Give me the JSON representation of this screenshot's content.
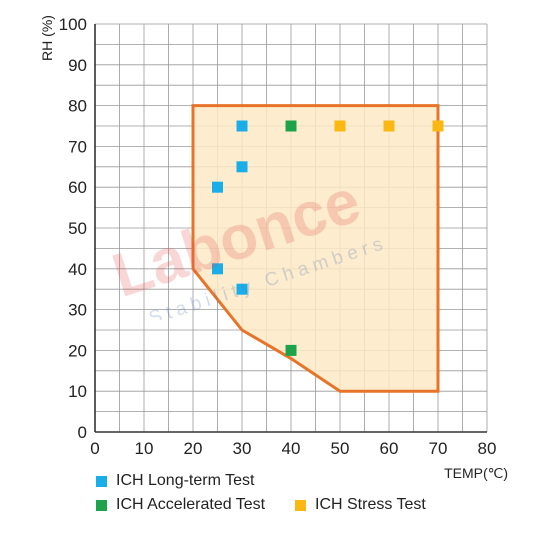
{
  "chart_data": {
    "type": "scatter",
    "xlabel": "TEMP(℃)",
    "ylabel": "RH (%)",
    "xlim": [
      0,
      80
    ],
    "ylim": [
      0,
      100
    ],
    "x_ticks": [
      0,
      10,
      20,
      30,
      40,
      50,
      60,
      70,
      80
    ],
    "y_ticks": [
      0,
      10,
      20,
      30,
      40,
      50,
      60,
      70,
      80,
      90,
      100
    ],
    "grid": true,
    "region": {
      "points": [
        [
          20,
          80
        ],
        [
          70,
          80
        ],
        [
          70,
          10
        ],
        [
          50,
          10
        ],
        [
          40,
          18
        ],
        [
          30,
          25
        ],
        [
          20,
          40
        ]
      ],
      "fill": "#fde9c6",
      "stroke": "#e8742a"
    },
    "series": [
      {
        "name": "ICH Long-term Test",
        "color": "#1aaee8",
        "points": [
          [
            30,
            75
          ],
          [
            30,
            65
          ],
          [
            25,
            60
          ],
          [
            25,
            40
          ],
          [
            30,
            35
          ]
        ]
      },
      {
        "name": "ICH Accelerated Test",
        "color": "#1fa34a",
        "points": [
          [
            40,
            75
          ],
          [
            40,
            20
          ]
        ]
      },
      {
        "name": "ICH Stress Test",
        "color": "#fbb812",
        "points": [
          [
            50,
            75
          ],
          [
            60,
            75
          ],
          [
            70,
            75
          ]
        ]
      }
    ]
  },
  "watermark": {
    "brand": "Labonce",
    "tagline": "Stability Chambers"
  }
}
